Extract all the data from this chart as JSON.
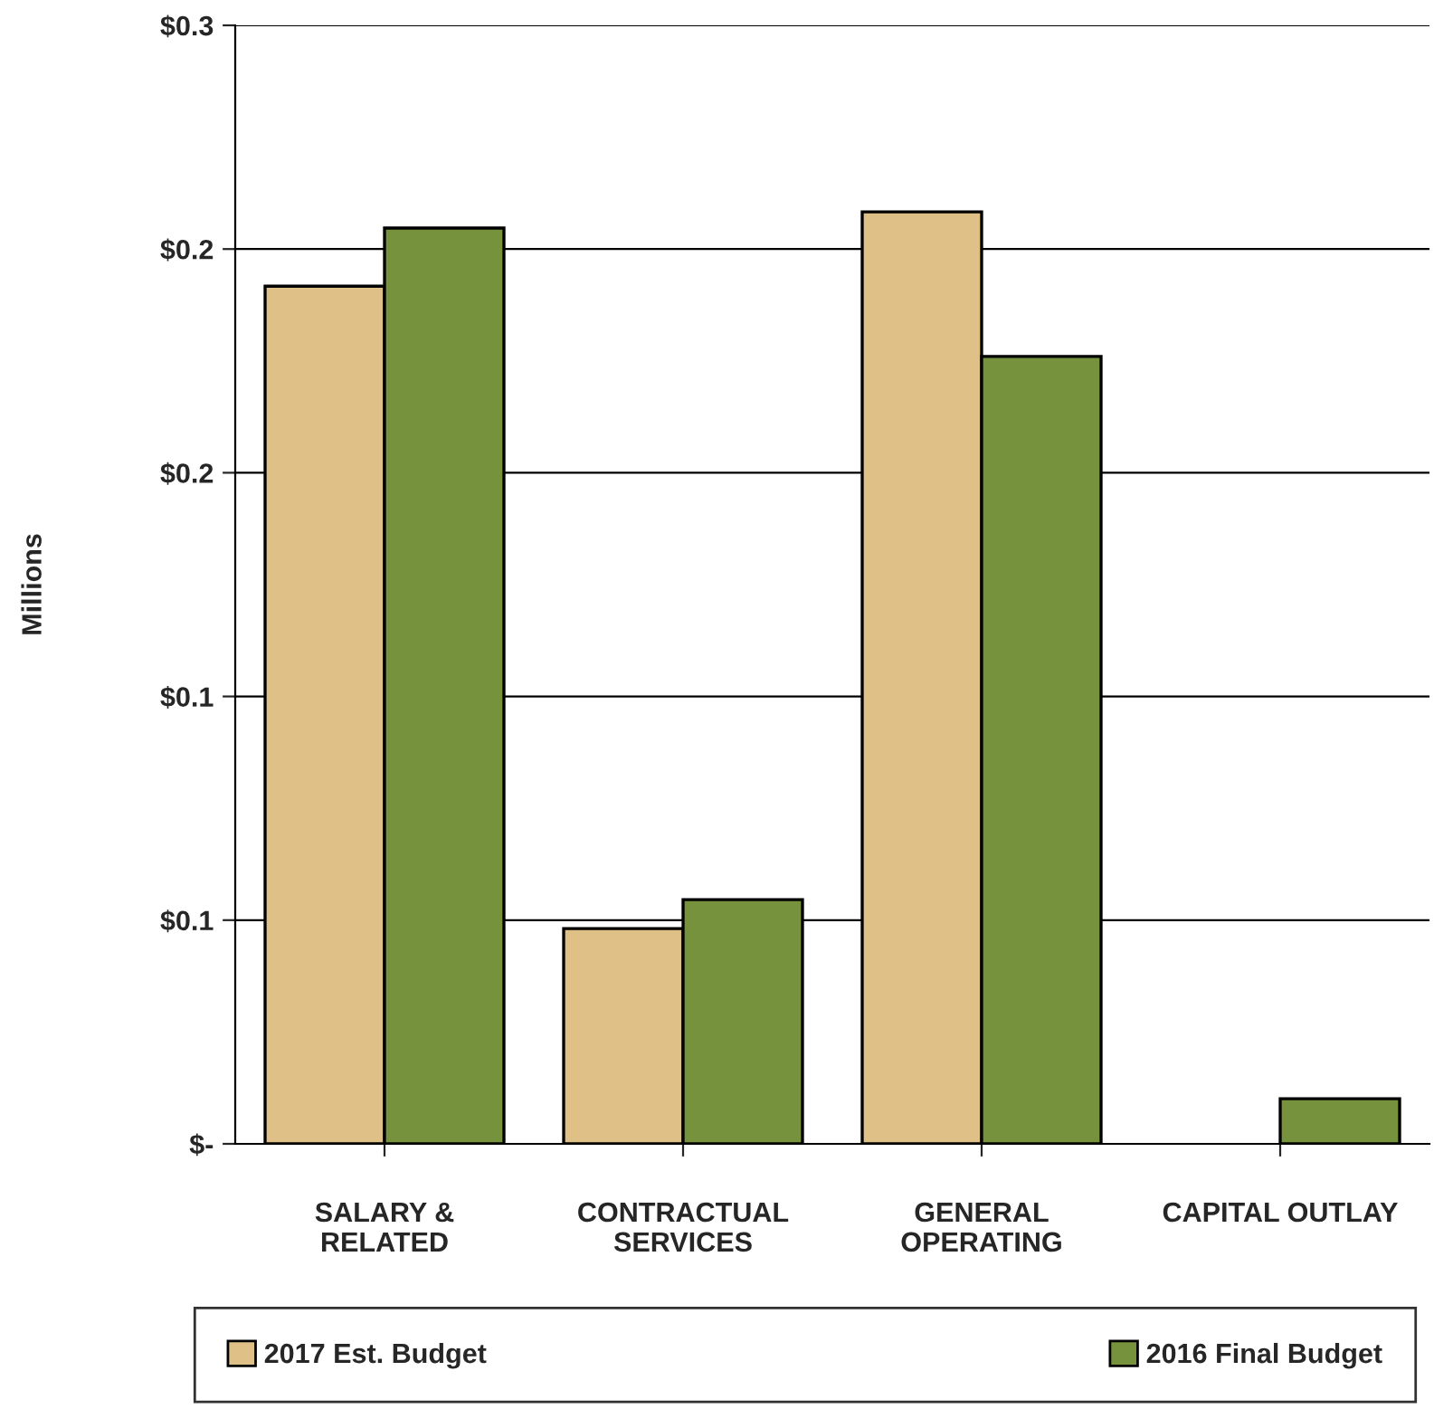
{
  "chart_data": {
    "type": "bar",
    "ylabel": "Millions",
    "categories": [
      "SALARY &\nRELATED",
      "CONTRACTUAL\nSERVICES",
      "GENERAL\nOPERATING",
      "CAPITAL OUTLAY"
    ],
    "series": [
      {
        "name": "2017 Est. Budget",
        "color": "#dfc086",
        "values": [
          0.1917,
          0.0481,
          0.2083,
          null
        ]
      },
      {
        "name": "2016 Final Budget",
        "color": "#76923c",
        "values": [
          0.2047,
          0.0546,
          0.176,
          0.0101
        ]
      }
    ],
    "ylim": [
      0,
      0.25
    ],
    "yticks": [
      {
        "value": 0,
        "label": "$-"
      },
      {
        "value": 0.05,
        "label": "$0.1"
      },
      {
        "value": 0.1,
        "label": "$0.1"
      },
      {
        "value": 0.15,
        "label": "$0.2"
      },
      {
        "value": 0.2,
        "label": "$0.2"
      },
      {
        "value": 0.25,
        "label": "$0.3"
      }
    ],
    "grid": "y",
    "legend": "bottom"
  }
}
